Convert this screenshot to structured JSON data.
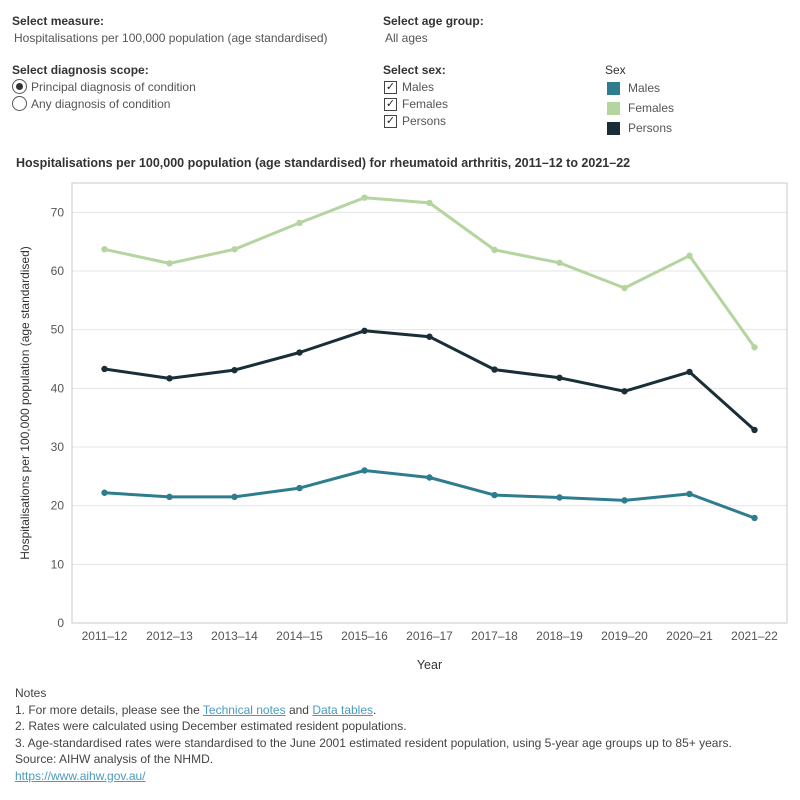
{
  "controls": {
    "measure": {
      "label": "Select measure:",
      "value": "Hospitalisations per 100,000 population (age standardised)"
    },
    "age_group": {
      "label": "Select age group:",
      "value": "All ages"
    },
    "scope": {
      "label": "Select diagnosis scope:",
      "options": [
        {
          "label": "Principal diagnosis of condition",
          "selected": true
        },
        {
          "label": "Any diagnosis of condition",
          "selected": false
        }
      ]
    },
    "sex": {
      "label": "Select sex:",
      "options": [
        {
          "label": "Males",
          "checked": true
        },
        {
          "label": "Females",
          "checked": true
        },
        {
          "label": "Persons",
          "checked": true
        }
      ]
    }
  },
  "legend": {
    "title": "Sex",
    "items": [
      {
        "label": "Males",
        "color": "#2e7d8f"
      },
      {
        "label": "Females",
        "color": "#b5d5a0"
      },
      {
        "label": "Persons",
        "color": "#1a2e38"
      }
    ]
  },
  "chart_data": {
    "type": "line",
    "title": "Hospitalisations per 100,000 population (age standardised) for rheumatoid arthritis, 2011–12 to 2021–22",
    "xlabel": "Year",
    "ylabel": "Hospitalisations per 100,000 population (age standardised)",
    "ylim": [
      0,
      75
    ],
    "yticks": [
      0,
      10,
      20,
      30,
      40,
      50,
      60,
      70
    ],
    "grid": true,
    "categories": [
      "2011–12",
      "2012–13",
      "2013–14",
      "2014–15",
      "2015–16",
      "2016–17",
      "2017–18",
      "2018–19",
      "2019–20",
      "2020–21",
      "2021–22"
    ],
    "series": [
      {
        "name": "Females",
        "color": "#b5d5a0",
        "values": [
          63.7,
          61.3,
          63.7,
          68.2,
          72.5,
          71.6,
          63.6,
          61.4,
          57.1,
          62.6,
          47.0
        ]
      },
      {
        "name": "Persons",
        "color": "#1a2e38",
        "values": [
          43.3,
          41.7,
          43.1,
          46.1,
          49.8,
          48.8,
          43.2,
          41.8,
          39.5,
          42.8,
          32.9
        ]
      },
      {
        "name": "Males",
        "color": "#2e7d8f",
        "values": [
          22.2,
          21.5,
          21.5,
          23.0,
          26.0,
          24.8,
          21.8,
          21.4,
          20.9,
          22.0,
          17.9
        ]
      }
    ]
  },
  "notes": {
    "heading": "Notes",
    "line1_prefix": "1. For more details, please see the ",
    "link_technical": "Technical notes",
    "line1_and": " and ",
    "link_data": "Data tables",
    "line1_suffix": ".",
    "line2": "2. Rates were calculated using December estimated resident populations.",
    "line3": "3. Age-standardised rates were standardised to the June 2001 estimated resident population, using 5-year age groups up to 85+ years.",
    "source": "Source: AIHW analysis of the NHMD.",
    "url": "https://www.aihw.gov.au/"
  }
}
